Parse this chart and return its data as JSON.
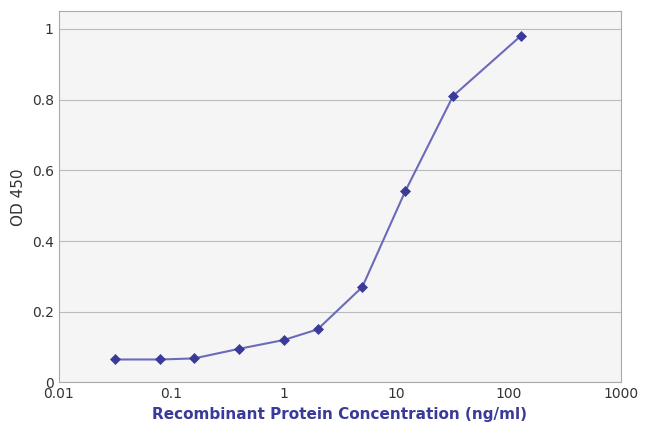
{
  "x": [
    0.032,
    0.08,
    0.16,
    0.4,
    1.0,
    2.0,
    5.0,
    12.0,
    32.0,
    128.0
  ],
  "y": [
    0.065,
    0.065,
    0.068,
    0.095,
    0.12,
    0.15,
    0.27,
    0.54,
    0.81,
    0.98
  ],
  "line_color": "#6b6bba",
  "marker_color": "#3a3a9a",
  "marker_size": 5,
  "line_width": 1.5,
  "xlabel": "Recombinant Protein Concentration (ng/ml)",
  "ylabel": "OD 450",
  "xlim": [
    0.01,
    1000
  ],
  "ylim": [
    0,
    1.05
  ],
  "yticks": [
    0,
    0.2,
    0.4,
    0.6,
    0.8,
    1.0
  ],
  "ytick_labels": [
    "0",
    "0.2",
    "0.4",
    "0.6",
    "0.8",
    "1"
  ],
  "xtick_values": [
    0.01,
    0.1,
    1,
    10,
    100,
    1000
  ],
  "xtick_labels": [
    "0.01",
    "0.1",
    "1",
    "10",
    "100",
    "1000"
  ],
  "grid_color": "#bbbbbb",
  "background_color": "#ffffff",
  "plot_bg_color": "#f5f5f5",
  "xlabel_fontsize": 11,
  "ylabel_fontsize": 11,
  "tick_fontsize": 10,
  "xlabel_color": "#3a3a9a",
  "ylabel_color": "#333333",
  "label_fontweight": "bold"
}
